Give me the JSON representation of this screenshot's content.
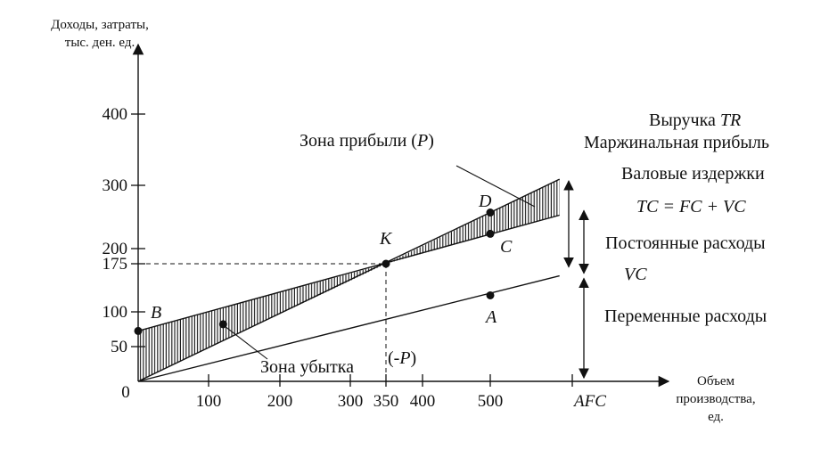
{
  "axes": {
    "y_title_line1": "Доходы, затраты,",
    "y_title_line2": "тыс. ден. ед.",
    "x_title_line1": "Объем",
    "x_title_line2": "производства,",
    "x_title_line3": "ед.",
    "origin": "0",
    "y_ticks": [
      {
        "value": 50,
        "label": "50"
      },
      {
        "value": 100,
        "label": "100"
      },
      {
        "value": 175,
        "label": "175"
      },
      {
        "value": 200,
        "label": "200"
      },
      {
        "value": 300,
        "label": "300"
      },
      {
        "value": 400,
        "label": "400"
      }
    ],
    "x_ticks": [
      {
        "value": 100,
        "label": "100"
      },
      {
        "value": 200,
        "label": "200"
      },
      {
        "value": 300,
        "label": "300"
      },
      {
        "value": 350,
        "label": "350"
      },
      {
        "value": 400,
        "label": "400"
      },
      {
        "value": 500,
        "label": "500"
      }
    ],
    "x_afc_label": "AFC"
  },
  "lines": {
    "tr": {
      "label": "Выручка TR",
      "points": [
        [
          0,
          0
        ],
        [
          350,
          175
        ],
        [
          605,
          302
        ]
      ]
    },
    "tc": {
      "label": "TC = FC + VC",
      "points": [
        [
          0,
          75
        ],
        [
          350,
          175
        ],
        [
          605,
          248
        ]
      ]
    },
    "vc": {
      "label": "VC",
      "points": [
        [
          0,
          0
        ],
        [
          605,
          157
        ]
      ]
    }
  },
  "points": {
    "B": {
      "label": "B",
      "x": 0,
      "y": 75
    },
    "K": {
      "label": "K",
      "x": 350,
      "y": 175
    },
    "D": {
      "label": "D",
      "x": 500,
      "y": 252
    },
    "C": {
      "label": "C",
      "x": 500,
      "y": 220
    },
    "A": {
      "label": "A",
      "x": 500,
      "y": 128
    },
    "L": {
      "label": "",
      "x": 120,
      "y": 85
    }
  },
  "annotations": {
    "profit_zone": "Зона прибыли (P)",
    "loss_zone": "Зона убытка",
    "loss_p": "(-P)",
    "revenue": "Выручка TR",
    "marginal_profit": "Маржинальная прибыль",
    "gross_costs": "Валовые издержки",
    "tc_formula": "TC = FC + VC",
    "fixed_costs": "Постоянные расходы",
    "vc": "VC",
    "variable_costs": "Переменные расходы"
  }
}
